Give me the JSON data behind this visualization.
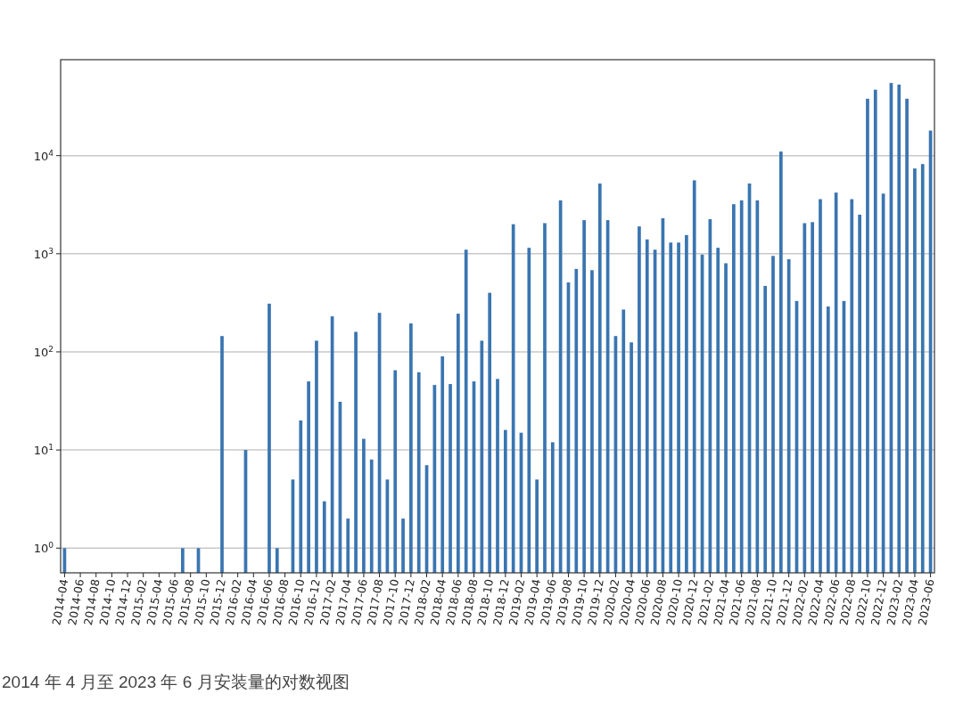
{
  "chart_data": {
    "type": "bar",
    "log": true,
    "grid": "y",
    "color": "#3a75b0",
    "ylim": [
      0.56,
      95000
    ],
    "yticks": [
      {
        "value": 1,
        "label": "10$^{0}$"
      },
      {
        "value": 10,
        "label": "10$^{1}$"
      },
      {
        "value": 100,
        "label": "10$^{2}$"
      },
      {
        "value": 1000,
        "label": "10$^{3}$"
      },
      {
        "value": 10000,
        "label": "10$^{4}$"
      }
    ],
    "categories": [
      "2014-04",
      null,
      "2014-06",
      null,
      "2014-08",
      null,
      "2014-10",
      null,
      "2014-12",
      null,
      "2015-02",
      null,
      "2015-04",
      null,
      "2015-06",
      null,
      "2015-08",
      null,
      "2015-10",
      null,
      "2015-12",
      null,
      "2016-02",
      null,
      "2016-04",
      null,
      "2016-06",
      null,
      "2016-08",
      null,
      "2016-10",
      null,
      "2016-12",
      null,
      "2017-02",
      null,
      "2017-04",
      null,
      "2017-06",
      null,
      "2017-08",
      null,
      "2017-10",
      null,
      "2017-12",
      null,
      "2018-02",
      null,
      "2018-04",
      null,
      "2018-06",
      null,
      "2018-08",
      null,
      "2018-10",
      null,
      "2018-12",
      null,
      "2019-02",
      null,
      "2019-04",
      null,
      "2019-06",
      null,
      "2019-08",
      null,
      "2019-10",
      null,
      "2019-12",
      null,
      "2020-02",
      null,
      "2020-04",
      null,
      "2020-06",
      null,
      "2020-08",
      null,
      "2020-10",
      null,
      "2020-12",
      null,
      "2021-02",
      null,
      "2021-04",
      null,
      "2021-06",
      null,
      "2021-08",
      null,
      "2021-10",
      null,
      "2021-12",
      null,
      "2022-02",
      null,
      "2022-04",
      null,
      "2022-06",
      null,
      "2022-08",
      null,
      "2022-10",
      null,
      "2022-12",
      null,
      "2023-02",
      null,
      "2023-04",
      null,
      "2023-06"
    ],
    "values": [
      1,
      null,
      null,
      null,
      null,
      null,
      null,
      null,
      null,
      null,
      null,
      null,
      null,
      null,
      null,
      1,
      null,
      1,
      null,
      null,
      145,
      null,
      null,
      10,
      null,
      null,
      310,
      1,
      null,
      5,
      20,
      50,
      130,
      3,
      230,
      31,
      2,
      160,
      13,
      8,
      250,
      5,
      65,
      2,
      195,
      62,
      7,
      46,
      90,
      47,
      245,
      1100,
      50,
      130,
      400,
      53,
      16,
      2000,
      15,
      1150,
      5,
      2050,
      12,
      3500,
      510,
      700,
      2200,
      680,
      5200,
      2200,
      145,
      270,
      125,
      1900,
      1400,
      1100,
      2300,
      1300,
      1300,
      1550,
      5600,
      980,
      2250,
      1150,
      800,
      3200,
      3500,
      5200,
      3500,
      470,
      950,
      11000,
      880,
      330,
      2050,
      2100,
      3600,
      290,
      4200,
      330,
      3600,
      2500,
      38000,
      47000,
      4100,
      55000,
      53000,
      38000,
      7400,
      8200,
      18000
    ],
    "annotations": [
      "2014 年 4 月至 2023 年 6 月安装量的对数视图"
    ]
  }
}
